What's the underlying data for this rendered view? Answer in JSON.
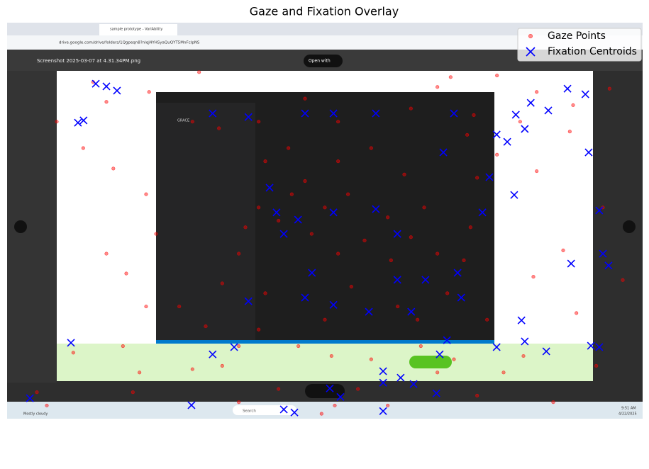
{
  "chart_data": {
    "type": "scatter",
    "title": "Gaze and Fixation Overlay",
    "xlim": [
      0,
      1920
    ],
    "ylim": [
      1200,
      0
    ],
    "legend": "upper right",
    "image_texts": [
      "sample prototype - VariAbility",
      "drive.google.com/drive/folders/1Qgpeqn8?nlqJ4YHSyaQuQYT5MnFcIpNS",
      "Screenshot 2025-03-07 at 4.31.34PM.png",
      "Open with",
      "GRACE",
      "Search",
      "9:51 AM",
      "4/22/2025",
      "Mostly cloudy"
    ],
    "series": [
      {
        "name": "Gaze Points",
        "color": "#ff0000",
        "marker": "o",
        "x": [
          321,
          429,
          580,
          900,
          1300,
          1340,
          1600,
          1700,
          1600,
          1680,
          1590,
          1720,
          1650,
          1420,
          1150,
          950,
          820,
          700,
          380,
          350,
          400,
          420,
          360,
          300,
          450,
          420,
          230,
          150,
          560,
          600,
          520,
          1500,
          1560,
          1780,
          1800,
          1400,
          1380,
          1450,
          1250,
          1100,
          980,
          760,
          650,
          700,
          780,
          850,
          1000,
          1100,
          1200,
          1260,
          1220,
          1000,
          920,
          860,
          1030,
          1150,
          1300,
          1330,
          1180,
          1040,
          960,
          880,
          780,
          720,
          760,
          820,
          900,
          960,
          1080,
          1160,
          1240,
          1300,
          1350,
          650,
          700,
          1860,
          1820,
          1710,
          1550,
          1480,
          1420,
          1390,
          260,
          300,
          1000,
          760,
          640,
          560,
          1220,
          1410,
          1480,
          90,
          120,
          200,
          1060,
          990
        ],
        "values": [
          442,
          210,
          150,
          230,
          195,
          165,
          210,
          330,
          450,
          690,
          770,
          880,
          1150,
          1130,
          1160,
          1185,
          1110,
          1150,
          1120,
          980,
          1060,
          860,
          760,
          700,
          640,
          520,
          380,
          300,
          1050,
          920,
          860,
          1060,
          1010,
          1040,
          560,
          620,
          720,
          900,
          980,
          1020,
          1010,
          930,
          790,
          700,
          420,
          380,
          420,
          380,
          460,
          560,
          650,
          700,
          640,
          520,
          520,
          590,
          700,
          820,
          860,
          800,
          900,
          980,
          820,
          620,
          560,
          600,
          480,
          560,
          660,
          720,
          900,
          1060,
          1020,
          1040,
          980,
          780,
          200,
          250,
          300,
          400,
          470,
          340,
          180,
          240,
          300,
          300,
          320,
          300,
          260,
          280,
          160,
          1120,
          1160,
          1000,
          1110,
          1160
        ]
      },
      {
        "name": "Fixation Centroids",
        "color": "#0000ff",
        "marker": "x",
        "x": [
          268,
          300,
          332,
          214,
          231,
          1693,
          1747,
          1582,
          1635,
          1537,
          1564,
          1511,
          1479,
          1757,
          1532,
          1789,
          1704,
          1817,
          1800,
          193,
          1764,
          1789,
          1629,
          1564,
          1554,
          1479,
          1136,
          1189,
          1228,
          1297,
          1136,
          975,
          1007,
          836,
          868,
          1136,
          557,
          69,
          621,
          729,
          900,
          986,
          1114,
          1350,
          793,
          814,
          836,
          879,
          986,
          1114,
          1179,
          1264,
          1221,
          1179,
          986,
          900,
          921,
          1093,
          1372,
          1361,
          1329,
          1307,
          686,
          621,
          729,
          1436,
          1457,
          1318
        ],
        "values": [
          185,
          193,
          206,
          303,
          296,
          200,
          217,
          243,
          266,
          279,
          322,
          361,
          339,
          393,
          522,
          569,
          730,
          736,
          700,
          970,
          979,
          983,
          996,
          966,
          902,
          983,
          1056,
          1076,
          1095,
          1123,
          1091,
          1108,
          1134,
          1172,
          1181,
          1177,
          1159,
          1138,
          275,
          286,
          275,
          275,
          275,
          275,
          500,
          575,
          640,
          597,
          575,
          565,
          640,
          779,
          876,
          779,
          855,
          833,
          758,
          876,
          833,
          758,
          962,
          1005,
          983,
          1005,
          844,
          575,
          468,
          393
        ]
      }
    ]
  }
}
